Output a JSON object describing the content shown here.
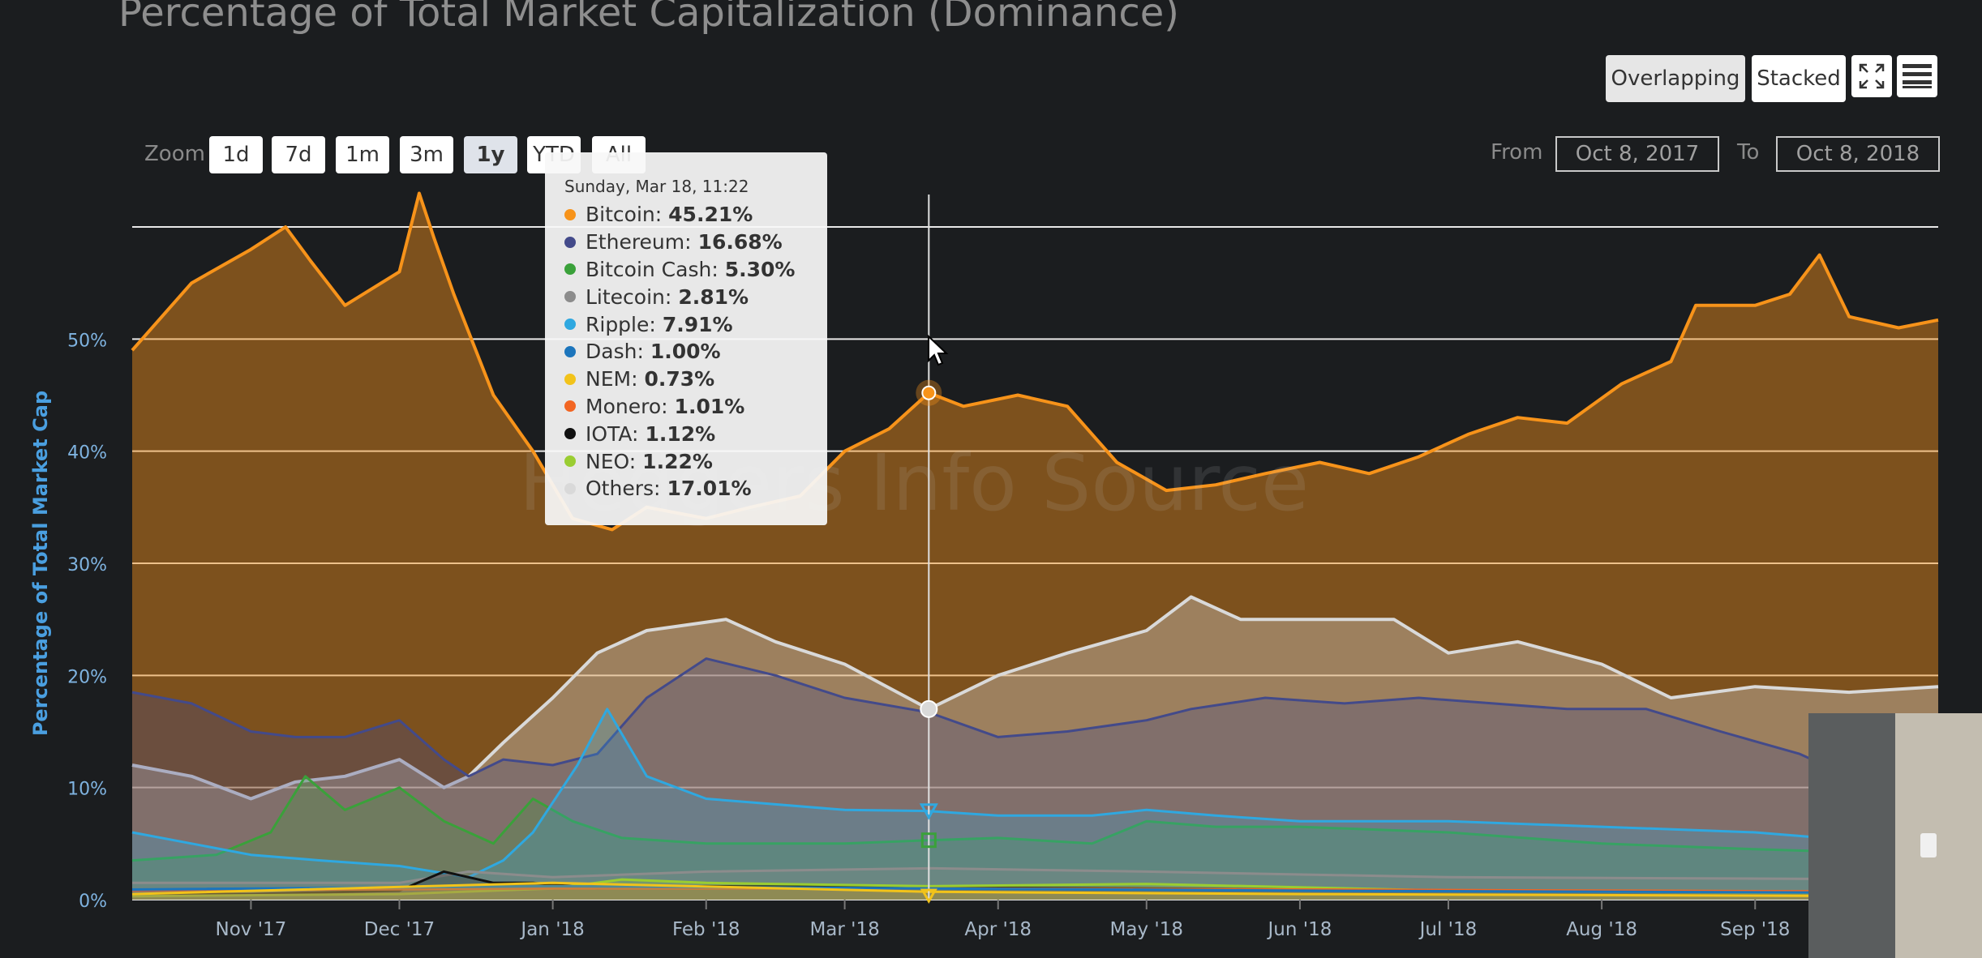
{
  "title": "Percentage of Total Market Capitalization (Dominance)",
  "view_buttons": {
    "overlapping": "Overlapping",
    "stacked": "Stacked"
  },
  "icons": {
    "fullscreen": "fullscreen-icon",
    "menu": "hamburger-menu-icon"
  },
  "zoom": {
    "label": "Zoom",
    "options": [
      "1d",
      "7d",
      "1m",
      "3m",
      "1y",
      "YTD",
      "All"
    ],
    "selected": "1y"
  },
  "range": {
    "from_label": "From",
    "from_value": "Oct 8, 2017",
    "to_label": "To",
    "to_value": "Oct 8, 2018"
  },
  "tooltip": {
    "date": "Sunday, Mar 18, 11:22",
    "rows": [
      {
        "name": "Bitcoin",
        "value": "45.21%",
        "color": "#f7931a"
      },
      {
        "name": "Ethereum",
        "value": "16.68%",
        "color": "#434a8a"
      },
      {
        "name": "Bitcoin Cash",
        "value": "5.30%",
        "color": "#3aa13a"
      },
      {
        "name": "Litecoin",
        "value": "2.81%",
        "color": "#8c8c8c"
      },
      {
        "name": "Ripple",
        "value": "7.91%",
        "color": "#2fa8e0"
      },
      {
        "name": "Dash",
        "value": "1.00%",
        "color": "#1c75bc"
      },
      {
        "name": "NEM",
        "value": "0.73%",
        "color": "#f2c31a"
      },
      {
        "name": "Monero",
        "value": "1.01%",
        "color": "#f26522"
      },
      {
        "name": "IOTA",
        "value": "1.12%",
        "color": "#111111"
      },
      {
        "name": "NEO",
        "value": "1.22%",
        "color": "#9acd32"
      },
      {
        "name": "Others",
        "value": "17.01%",
        "color": "#d9d9d9"
      }
    ]
  },
  "watermark": "Hedgers Info Source",
  "chart_data": {
    "type": "area",
    "title": "Percentage of Total Market Capitalization (Dominance)",
    "ylabel": "Percentage of Total Market Cap",
    "xlabel": "",
    "ylim": [
      0,
      60
    ],
    "y_ticks": [
      "0%",
      "10%",
      "20%",
      "30%",
      "40%",
      "50%"
    ],
    "x_ticks": [
      "Nov '17",
      "Dec '17",
      "Jan '18",
      "Feb '18",
      "Mar '18",
      "Apr '18",
      "May '18",
      "Jun '18",
      "Jul '18",
      "Aug '18",
      "Sep '18"
    ],
    "x_range": [
      "2017-10-08",
      "2018-10-08"
    ],
    "grid": true,
    "hover_date": "2018-03-18",
    "series": [
      {
        "name": "Bitcoin",
        "color": "#f7931a",
        "x": [
          "2017-10-08",
          "2017-10-20",
          "2017-11-01",
          "2017-11-08",
          "2017-11-13",
          "2017-11-20",
          "2017-12-01",
          "2017-12-05",
          "2017-12-08",
          "2017-12-12",
          "2017-12-20",
          "2017-12-28",
          "2018-01-05",
          "2018-01-13",
          "2018-01-20",
          "2018-02-01",
          "2018-02-10",
          "2018-02-20",
          "2018-03-01",
          "2018-03-10",
          "2018-03-18",
          "2018-03-25",
          "2018-04-05",
          "2018-04-15",
          "2018-04-25",
          "2018-05-05",
          "2018-05-15",
          "2018-05-25",
          "2018-06-05",
          "2018-06-15",
          "2018-06-25",
          "2018-07-05",
          "2018-07-15",
          "2018-07-25",
          "2018-08-05",
          "2018-08-15",
          "2018-08-20",
          "2018-09-01",
          "2018-09-08",
          "2018-09-14",
          "2018-09-20",
          "2018-09-30",
          "2018-10-08"
        ],
        "values": [
          49,
          55,
          58,
          60,
          57,
          53,
          56,
          63,
          59,
          54,
          45,
          40,
          34,
          33,
          35,
          34,
          35,
          36,
          40,
          42,
          45.2,
          44,
          45,
          44,
          39,
          36.5,
          37,
          38,
          39,
          38,
          39.5,
          41.5,
          43,
          42.5,
          46,
          48,
          53,
          53,
          54,
          57.5,
          52,
          51,
          51.7
        ]
      },
      {
        "name": "Others",
        "color": "#d9d9d9",
        "x": [
          "2017-10-08",
          "2017-10-20",
          "2017-11-01",
          "2017-11-10",
          "2017-11-20",
          "2017-12-01",
          "2017-12-10",
          "2017-12-15",
          "2017-12-22",
          "2018-01-01",
          "2018-01-10",
          "2018-01-20",
          "2018-01-28",
          "2018-02-05",
          "2018-02-15",
          "2018-03-01",
          "2018-03-18",
          "2018-04-01",
          "2018-04-15",
          "2018-05-01",
          "2018-05-10",
          "2018-05-20",
          "2018-06-01",
          "2018-06-20",
          "2018-07-01",
          "2018-07-15",
          "2018-08-01",
          "2018-08-15",
          "2018-09-01",
          "2018-09-20",
          "2018-10-08"
        ],
        "values": [
          12,
          11,
          9,
          10.5,
          11,
          12.5,
          10,
          11,
          14,
          18,
          22,
          24,
          24.5,
          25,
          23,
          21,
          17,
          20,
          22,
          24,
          27,
          25,
          25,
          25,
          22,
          23,
          21,
          18,
          19,
          18.5,
          19
        ]
      },
      {
        "name": "Ethereum",
        "color": "#434a8a",
        "x": [
          "2017-10-08",
          "2017-10-20",
          "2017-11-01",
          "2017-11-10",
          "2017-11-20",
          "2017-12-01",
          "2017-12-10",
          "2017-12-15",
          "2017-12-22",
          "2018-01-01",
          "2018-01-10",
          "2018-01-20",
          "2018-02-01",
          "2018-02-15",
          "2018-03-01",
          "2018-03-18",
          "2018-04-01",
          "2018-04-15",
          "2018-05-01",
          "2018-05-10",
          "2018-05-25",
          "2018-06-10",
          "2018-06-25",
          "2018-07-10",
          "2018-07-25",
          "2018-08-10",
          "2018-08-25",
          "2018-09-10",
          "2018-09-20",
          "2018-10-08"
        ],
        "values": [
          18.5,
          17.5,
          15,
          14.5,
          14.5,
          16,
          12.5,
          11,
          12.5,
          12,
          13,
          18,
          21.5,
          20,
          18,
          16.7,
          14.5,
          15,
          16,
          17,
          18,
          17.5,
          18,
          17.5,
          17,
          17,
          15,
          13,
          11,
          10
        ]
      },
      {
        "name": "Bitcoin Cash",
        "color": "#3aa13a",
        "x": [
          "2017-10-08",
          "2017-10-25",
          "2017-11-05",
          "2017-11-12",
          "2017-11-20",
          "2017-12-01",
          "2017-12-10",
          "2017-12-20",
          "2017-12-28",
          "2018-01-05",
          "2018-01-15",
          "2018-02-01",
          "2018-03-01",
          "2018-03-18",
          "2018-04-01",
          "2018-04-20",
          "2018-05-01",
          "2018-05-15",
          "2018-06-01",
          "2018-07-01",
          "2018-08-01",
          "2018-09-01",
          "2018-10-08"
        ],
        "values": [
          3.5,
          4,
          6,
          11,
          8,
          10,
          7,
          5,
          9,
          7,
          5.5,
          5,
          5,
          5.3,
          5.5,
          5,
          7,
          6.5,
          6.5,
          6,
          5,
          4.5,
          4
        ]
      },
      {
        "name": "Ripple",
        "color": "#2fa8e0",
        "x": [
          "2017-10-08",
          "2017-10-20",
          "2017-11-01",
          "2017-11-15",
          "2017-12-01",
          "2017-12-15",
          "2017-12-22",
          "2017-12-28",
          "2018-01-03",
          "2018-01-06",
          "2018-01-12",
          "2018-01-20",
          "2018-02-01",
          "2018-02-15",
          "2018-03-01",
          "2018-03-18",
          "2018-04-01",
          "2018-04-20",
          "2018-05-01",
          "2018-05-15",
          "2018-06-01",
          "2018-07-01",
          "2018-08-01",
          "2018-09-01",
          "2018-09-15",
          "2018-10-08"
        ],
        "values": [
          6,
          5,
          4,
          3.5,
          3,
          2,
          3.5,
          6,
          10,
          12,
          17,
          11,
          9,
          8.5,
          8,
          7.9,
          7.5,
          7.5,
          8,
          7.5,
          7,
          7,
          6.5,
          6,
          5.5,
          5
        ]
      },
      {
        "name": "Litecoin",
        "color": "#8c8c8c",
        "x": [
          "2017-10-08",
          "2017-11-01",
          "2017-12-01",
          "2017-12-15",
          "2018-01-01",
          "2018-02-01",
          "2018-03-18",
          "2018-05-01",
          "2018-07-01",
          "2018-10-08"
        ],
        "values": [
          1.5,
          1.5,
          1.5,
          2.5,
          2,
          2.5,
          2.8,
          2.5,
          2,
          1.8
        ]
      },
      {
        "name": "IOTA",
        "color": "#111111",
        "x": [
          "2017-10-08",
          "2017-11-01",
          "2017-12-01",
          "2017-12-10",
          "2017-12-20",
          "2017-12-28",
          "2018-01-10",
          "2018-02-01",
          "2018-03-18",
          "2018-05-01",
          "2018-07-01",
          "2018-10-08"
        ],
        "values": [
          0.5,
          0.5,
          0.8,
          2.5,
          1.5,
          1.5,
          1,
          1.2,
          1.1,
          1,
          0.8,
          0.6
        ]
      },
      {
        "name": "NEO",
        "color": "#9acd32",
        "x": [
          "2017-10-08",
          "2017-12-01",
          "2018-01-01",
          "2018-01-15",
          "2018-02-01",
          "2018-03-18",
          "2018-05-01",
          "2018-07-01",
          "2018-10-08"
        ],
        "values": [
          0.3,
          0.5,
          1,
          1.8,
          1.5,
          1.2,
          1.4,
          0.8,
          0.5
        ]
      },
      {
        "name": "Monero",
        "color": "#f26522",
        "x": [
          "2017-10-08",
          "2018-01-01",
          "2018-03-18",
          "2018-06-01",
          "2018-10-08"
        ],
        "values": [
          0.8,
          1,
          1,
          0.9,
          0.7
        ]
      },
      {
        "name": "Dash",
        "color": "#1c75bc",
        "x": [
          "2017-10-08",
          "2018-01-01",
          "2018-03-18",
          "2018-06-01",
          "2018-10-08"
        ],
        "values": [
          0.9,
          1.2,
          1,
          0.8,
          0.6
        ]
      },
      {
        "name": "NEM",
        "color": "#f2c31a",
        "x": [
          "2017-10-08",
          "2018-01-01",
          "2018-03-18",
          "2018-06-01",
          "2018-10-08"
        ],
        "values": [
          0.5,
          1.5,
          0.7,
          0.5,
          0.3
        ]
      }
    ]
  }
}
